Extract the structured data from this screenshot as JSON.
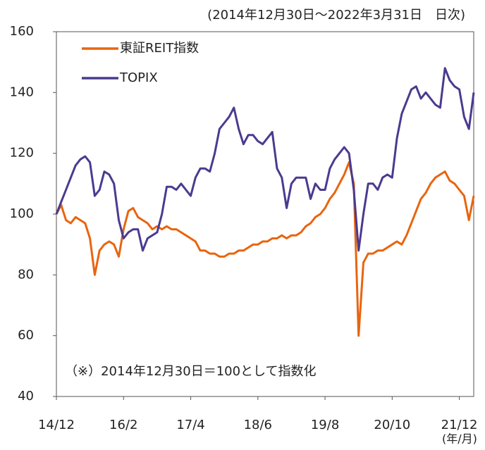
{
  "chart_data": {
    "type": "line",
    "subtitle": "(2014年12月30日～2022年3月31日　日次)",
    "annotation": "（※）2014年12月30日＝100として指数化",
    "x_unit": "(年/月)",
    "x": [
      "2014-12",
      "2015-01",
      "2015-02",
      "2015-03",
      "2015-04",
      "2015-05",
      "2015-06",
      "2015-07",
      "2015-08",
      "2015-09",
      "2015-10",
      "2015-11",
      "2015-12",
      "2016-01",
      "2016-02",
      "2016-03",
      "2016-04",
      "2016-05",
      "2016-06",
      "2016-07",
      "2016-08",
      "2016-09",
      "2016-10",
      "2016-11",
      "2016-12",
      "2017-01",
      "2017-02",
      "2017-03",
      "2017-04",
      "2017-05",
      "2017-06",
      "2017-07",
      "2017-08",
      "2017-09",
      "2017-10",
      "2017-11",
      "2017-12",
      "2018-01",
      "2018-02",
      "2018-03",
      "2018-04",
      "2018-05",
      "2018-06",
      "2018-07",
      "2018-08",
      "2018-09",
      "2018-10",
      "2018-11",
      "2018-12",
      "2019-01",
      "2019-02",
      "2019-03",
      "2019-04",
      "2019-05",
      "2019-06",
      "2019-07",
      "2019-08",
      "2019-09",
      "2019-10",
      "2019-11",
      "2019-12",
      "2020-01",
      "2020-02",
      "2020-03",
      "2020-04",
      "2020-05",
      "2020-06",
      "2020-07",
      "2020-08",
      "2020-09",
      "2020-10",
      "2020-11",
      "2020-12",
      "2021-01",
      "2021-02",
      "2021-03",
      "2021-04",
      "2021-05",
      "2021-06",
      "2021-07",
      "2021-08",
      "2021-09",
      "2021-10",
      "2021-11",
      "2021-12",
      "2022-01",
      "2022-02",
      "2022-03"
    ],
    "series": [
      {
        "name": "東証REIT指数",
        "color": "#e8650f",
        "values": [
          100,
          103,
          98,
          97,
          99,
          98,
          97,
          92,
          80,
          88,
          90,
          91,
          90,
          86,
          95,
          101,
          102,
          99,
          98,
          97,
          95,
          96,
          95,
          96,
          95,
          95,
          94,
          93,
          92,
          91,
          88,
          88,
          87,
          87,
          86,
          86,
          87,
          87,
          88,
          88,
          89,
          90,
          90,
          91,
          91,
          92,
          92,
          93,
          92,
          93,
          93,
          94,
          96,
          97,
          99,
          100,
          102,
          105,
          107,
          110,
          113,
          117,
          110,
          60,
          84,
          87,
          87,
          88,
          88,
          89,
          90,
          91,
          90,
          93,
          97,
          101,
          105,
          107,
          110,
          112,
          113,
          114,
          111,
          110,
          108,
          106,
          98,
          106
        ]
      },
      {
        "name": "TOPIX",
        "color": "#4b3a8f",
        "values": [
          100,
          104,
          108,
          112,
          116,
          118,
          119,
          117,
          106,
          108,
          114,
          113,
          110,
          98,
          92,
          94,
          95,
          95,
          88,
          92,
          93,
          94,
          100,
          109,
          109,
          108,
          110,
          108,
          106,
          112,
          115,
          115,
          114,
          120,
          128,
          130,
          132,
          135,
          128,
          123,
          126,
          126,
          124,
          123,
          125,
          127,
          115,
          112,
          102,
          110,
          112,
          112,
          112,
          105,
          110,
          108,
          108,
          115,
          118,
          120,
          122,
          120,
          108,
          88,
          100,
          110,
          110,
          108,
          112,
          113,
          112,
          125,
          133,
          137,
          141,
          142,
          138,
          140,
          138,
          136,
          135,
          148,
          144,
          142,
          141,
          132,
          128,
          140
        ]
      }
    ],
    "xlim": [
      "2014-12",
      "2022-03"
    ],
    "xticks": [
      {
        "value": "2014-12",
        "label": "14/12"
      },
      {
        "value": "2016-02",
        "label": "16/2"
      },
      {
        "value": "2017-04",
        "label": "17/4"
      },
      {
        "value": "2018-06",
        "label": "18/6"
      },
      {
        "value": "2019-08",
        "label": "19/8"
      },
      {
        "value": "2020-10",
        "label": "20/10"
      },
      {
        "value": "2021-12",
        "label": "21/12"
      }
    ],
    "ylim": [
      40,
      160
    ],
    "yticks": [
      40,
      60,
      80,
      100,
      120,
      140,
      160
    ],
    "legend": "upper left"
  }
}
